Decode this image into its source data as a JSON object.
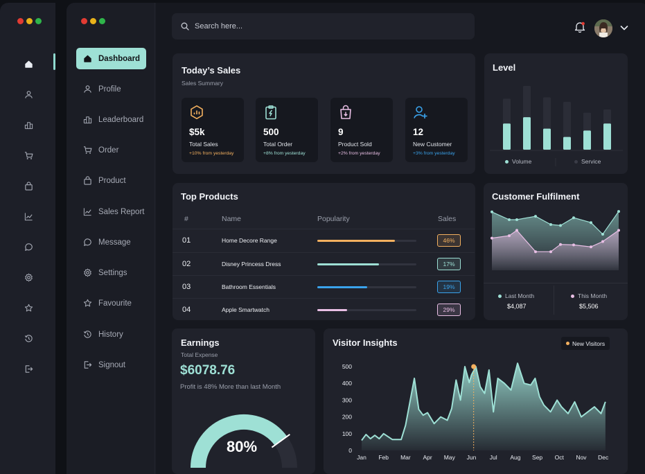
{
  "search": {
    "placeholder": "Search here..."
  },
  "nav": [
    {
      "label": "Dashboard",
      "icon": "home-icon"
    },
    {
      "label": "Profile",
      "icon": "user-icon"
    },
    {
      "label": "Leaderboard",
      "icon": "leaderboard-icon"
    },
    {
      "label": "Order",
      "icon": "cart-icon"
    },
    {
      "label": "Product",
      "icon": "bag-icon"
    },
    {
      "label": "Sales Report",
      "icon": "chart-line-icon"
    },
    {
      "label": "Message",
      "icon": "message-icon"
    },
    {
      "label": "Settings",
      "icon": "gear-icon"
    },
    {
      "label": "Favourite",
      "icon": "star-icon"
    },
    {
      "label": "History",
      "icon": "history-icon"
    },
    {
      "label": "Signout",
      "icon": "signout-icon"
    }
  ],
  "colors": {
    "accent": "#9ee0d5",
    "background": "#16181f",
    "card": "#20222b",
    "orange": "#f3b05f",
    "blue": "#3aa3ec",
    "pink": "#e9bfe5",
    "dot_red": "#e23b33",
    "dot_yellow": "#e9b21a",
    "dot_green": "#2fb54a"
  },
  "todays_sales": {
    "title": "Today’s Sales",
    "subtitle": "Sales Summary",
    "stats": [
      {
        "value": "$5k",
        "label": "Total Sales",
        "change": "+10% from yesterday",
        "icon": "hexagon-chart-icon",
        "color": "#f3b05f"
      },
      {
        "value": "500",
        "label": "Total Order",
        "change": "+8% from yesterday",
        "icon": "clipboard-icon",
        "color": "#9ee0d5"
      },
      {
        "value": "9",
        "label": "Product Sold",
        "change": "+2% from yesterday",
        "icon": "shopping-bag-icon",
        "color": "#e9bfe5"
      },
      {
        "value": "12",
        "label": "New Customer",
        "change": "+3% from yesterday",
        "icon": "user-plus-icon",
        "color": "#3aa3ec"
      }
    ]
  },
  "level": {
    "title": "Level",
    "legend": [
      "Volume",
      "Service"
    ],
    "bars": [
      {
        "volume": 0.41,
        "total": 0.8
      },
      {
        "volume": 0.51,
        "total": 1.0
      },
      {
        "volume": 0.33,
        "total": 0.82
      },
      {
        "volume": 0.2,
        "total": 0.75
      },
      {
        "volume": 0.3,
        "total": 0.58
      },
      {
        "volume": 0.41,
        "total": 0.63
      }
    ]
  },
  "top_products": {
    "title": "Top Products",
    "headers": [
      "#",
      "Name",
      "Popularity",
      "Sales"
    ],
    "rows": [
      {
        "num": "01",
        "name": "Home Decore Range",
        "pct": "46%",
        "popularity": 0.78,
        "color": "#f3b05f"
      },
      {
        "num": "02",
        "name": "Disney Princess Dress",
        "pct": "17%",
        "popularity": 0.62,
        "color": "#9ee0d5"
      },
      {
        "num": "03",
        "name": "Bathroom Essentials",
        "pct": "19%",
        "popularity": 0.5,
        "color": "#3aa3ec"
      },
      {
        "num": "04",
        "name": "Apple Smartwatch",
        "pct": "29%",
        "popularity": 0.3,
        "color": "#e9bfe5"
      }
    ]
  },
  "fulfilment": {
    "title": "Customer Fulfilment",
    "last_month": {
      "label": "Last Month",
      "value": "$4,087"
    },
    "this_month": {
      "label": "This Month",
      "value": "$5,506"
    },
    "last_month_series": [
      0.96,
      0.8,
      0.8,
      0.87,
      0.7,
      0.68,
      0.84,
      0.74,
      0.5,
      0.97
    ],
    "this_month_series": [
      0.42,
      0.47,
      0.58,
      0.14,
      0.14,
      0.29,
      0.28,
      0.24,
      0.35,
      0.58
    ]
  },
  "earnings": {
    "title": "Earnings",
    "subtitle": "Total Expense",
    "amount": "$6078.76",
    "note": "Profit is 48% More than last Month",
    "gauge_value": "80%",
    "gauge_fraction": 0.8
  },
  "chart_data": {
    "type": "area",
    "title": "Visitor Insights",
    "legend": [
      "New Visitors"
    ],
    "xlabel": "",
    "ylabel": "",
    "x_ticks": [
      "Jan",
      "Feb",
      "Mar",
      "Apr",
      "May",
      "Jun",
      "Jul",
      "Aug",
      "Sep",
      "Oct",
      "Nov",
      "Dec"
    ],
    "y_ticks": [
      "0",
      "100",
      "200",
      "300",
      "400",
      "500"
    ],
    "ylim": [
      0,
      500
    ],
    "series": [
      {
        "name": "New Visitors",
        "x": [
          0,
          0.2,
          0.4,
          0.6,
          0.8,
          1.0,
          1.4,
          1.8,
          2.0,
          2.4,
          2.6,
          2.8,
          3.0,
          3.3,
          3.6,
          3.9,
          4.1,
          4.3,
          4.5,
          4.7,
          4.9,
          5.0,
          5.2,
          5.4,
          5.6,
          5.8,
          6.0,
          6.2,
          6.5,
          6.8,
          7.1,
          7.4,
          7.7,
          7.9,
          8.1,
          8.3,
          8.6,
          8.9,
          9.1,
          9.4,
          9.7,
          10.0,
          10.3,
          10.6,
          10.9,
          11.1
        ],
        "values": [
          60,
          95,
          70,
          90,
          70,
          100,
          65,
          65,
          150,
          430,
          245,
          210,
          225,
          160,
          200,
          180,
          250,
          420,
          300,
          500,
          405,
          450,
          500,
          380,
          340,
          480,
          230,
          430,
          400,
          360,
          520,
          400,
          390,
          430,
          320,
          270,
          230,
          300,
          260,
          220,
          290,
          200,
          230,
          260,
          220,
          290
        ]
      }
    ],
    "highlight": {
      "month": "Jun",
      "value": 500
    }
  }
}
